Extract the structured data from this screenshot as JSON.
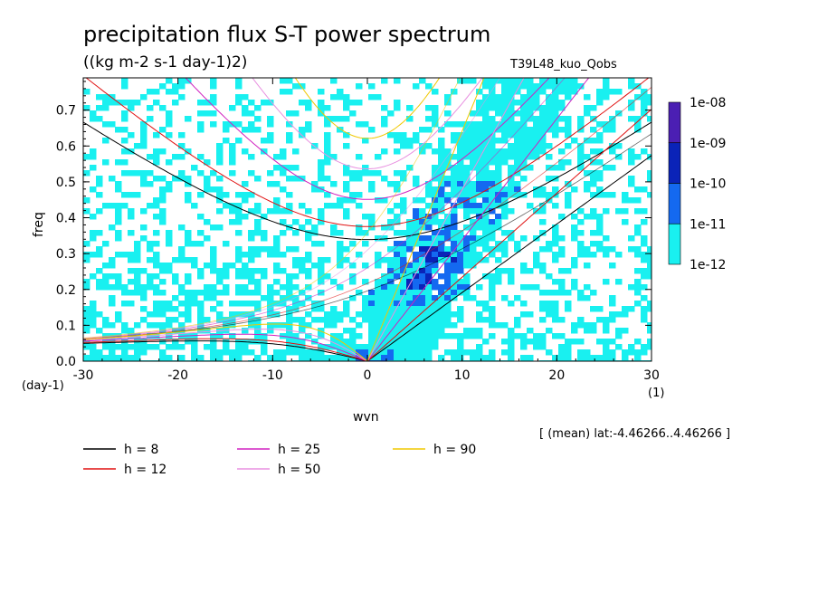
{
  "chart_data": {
    "type": "heatmap",
    "title": "precipitation flux S-T power spectrum",
    "subtitle": "((kg m-2 s-1 day-1)2)",
    "run_label": "T39L48_kuo_Qobs",
    "xlabel": "wvn",
    "ylabel": "freq",
    "x_unit": "(1)",
    "y_unit": "(day-1)",
    "xlim": [
      -30,
      30
    ],
    "ylim": [
      0,
      0.79
    ],
    "xticks": [
      -30,
      -20,
      -10,
      0,
      10,
      20,
      30
    ],
    "yticks": [
      0.0,
      0.1,
      0.2,
      0.3,
      0.4,
      0.5,
      0.6,
      0.7
    ],
    "xtick_labels": [
      "-30",
      "-20",
      "-10",
      "0",
      "10",
      "20",
      "30"
    ],
    "ytick_labels": [
      "0.0",
      "0.1",
      "0.2",
      "0.3",
      "0.4",
      "0.5",
      "0.6",
      "0.7"
    ],
    "colorbar": {
      "labels": [
        "1e-08",
        "1e-09",
        "1e-10",
        "1e-11",
        "1e-12"
      ],
      "colors": [
        "#4b1fb3",
        "#0a23b8",
        "#1469f0",
        "#19f0f0"
      ]
    },
    "annotation": "[ (mean) lat:-4.46266..4.46266 ]",
    "dispersion_curves": [
      {
        "label": "h =  8",
        "h": 8,
        "color": "#000000"
      },
      {
        "label": "h = 12",
        "h": 12,
        "color": "#e01010"
      },
      {
        "label": "h = 25",
        "h": 25,
        "color": "#d020c0"
      },
      {
        "label": "h = 50",
        "h": 50,
        "color": "#e890e0"
      },
      {
        "label": "h = 90",
        "h": 90,
        "color": "#f0c800"
      }
    ],
    "spectral_features": [
      {
        "band": "kelvin_ridge",
        "wvn_range": [
          0,
          14
        ],
        "freq_range": [
          0.0,
          0.45
        ],
        "level": "1e-10 to 1e-09"
      },
      {
        "band": "background",
        "wvn_range": [
          -30,
          30
        ],
        "freq_range": [
          0.0,
          0.79
        ],
        "level": "1e-12 to 1e-11"
      }
    ]
  }
}
